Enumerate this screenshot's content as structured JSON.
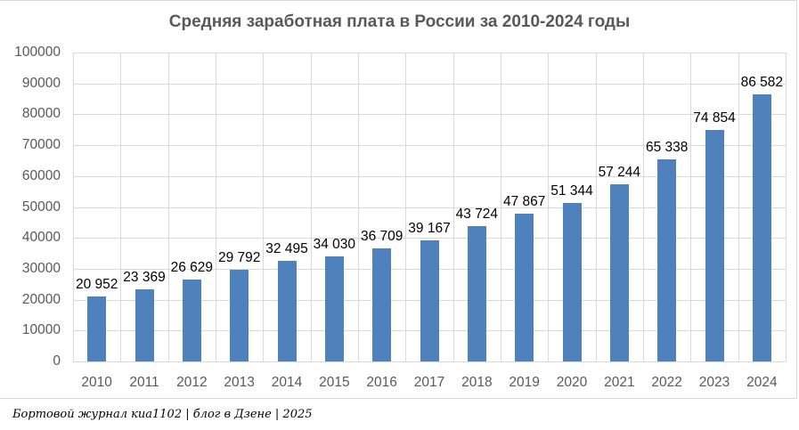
{
  "chart_data": {
    "type": "bar",
    "title": "Средняя заработная плата в России за 2010-2024 годы",
    "xlabel": "",
    "ylabel": "",
    "categories": [
      "2010",
      "2011",
      "2012",
      "2013",
      "2014",
      "2015",
      "2016",
      "2017",
      "2018",
      "2019",
      "2020",
      "2021",
      "2022",
      "2023",
      "2024"
    ],
    "values": [
      20952,
      23369,
      26629,
      29792,
      32495,
      34030,
      36709,
      39167,
      43724,
      47867,
      51344,
      57244,
      65338,
      74854,
      86582
    ],
    "data_labels": [
      "20 952",
      "23 369",
      "26 629",
      "29 792",
      "32 495",
      "34 030",
      "36 709",
      "39 167",
      "43 724",
      "47 867",
      "51 344",
      "57 244",
      "65 338",
      "74 854",
      "86 582"
    ],
    "ylim": [
      0,
      100000
    ],
    "yticks": [
      "0",
      "10000",
      "20000",
      "30000",
      "40000",
      "50000",
      "60000",
      "70000",
      "80000",
      "90000",
      "100000"
    ],
    "grid": true,
    "legend": null,
    "bar_color": "#4f81bd"
  },
  "footer": "Бортовой журнал киа1102 | блог в Дзене | 2025"
}
